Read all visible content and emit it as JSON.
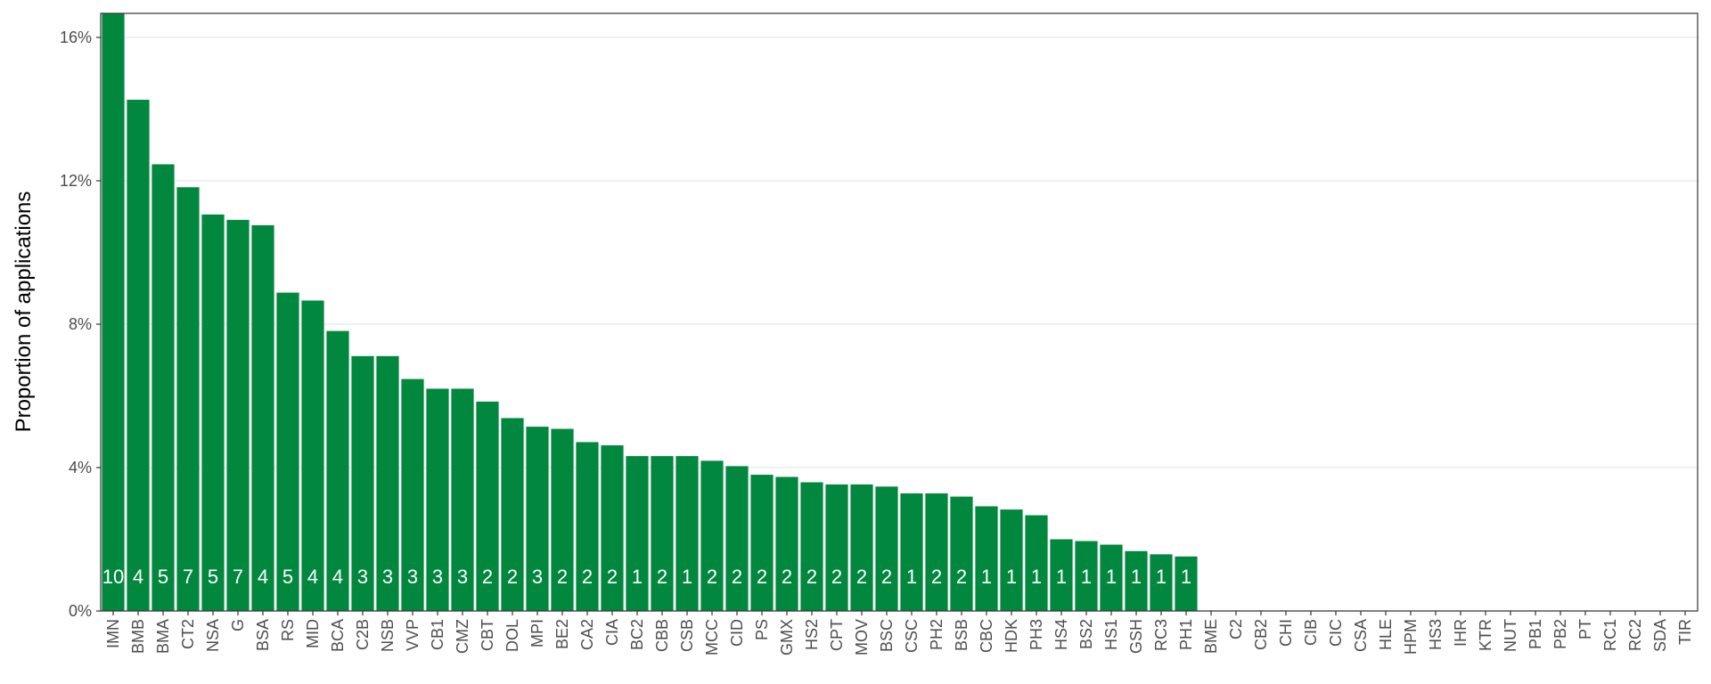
{
  "chart_data": {
    "type": "bar",
    "ylabel": "Proportion of applications",
    "categories": [
      "IMN",
      "BMB",
      "BMA",
      "CT2",
      "NSA",
      "G",
      "BSA",
      "RS",
      "MID",
      "BCA",
      "C2B",
      "NSB",
      "VVP",
      "CB1",
      "CMZ",
      "CBT",
      "DOL",
      "MPI",
      "BE2",
      "CA2",
      "CIA",
      "BC2",
      "CBB",
      "CSB",
      "MCC",
      "CID",
      "PS",
      "GMX",
      "HS2",
      "CPT",
      "MOV",
      "BSC",
      "CSC",
      "PH2",
      "BSB",
      "CBC",
      "HDK",
      "PH3",
      "HS4",
      "BS2",
      "HS1",
      "GSH",
      "RC3",
      "PH1",
      "BME",
      "C2",
      "CB2",
      "CHI",
      "CIB",
      "CIC",
      "CSA",
      "HLE",
      "HPM",
      "HS3",
      "IHR",
      "KTR",
      "NUT",
      "PB1",
      "PB2",
      "PT",
      "RC1",
      "RC2",
      "SDA",
      "TIR"
    ],
    "values": [
      16.67,
      14.26,
      12.46,
      11.82,
      11.06,
      10.91,
      10.76,
      8.88,
      8.66,
      7.81,
      7.11,
      7.11,
      6.47,
      6.2,
      6.2,
      5.84,
      5.38,
      5.14,
      5.08,
      4.71,
      4.62,
      4.32,
      4.32,
      4.32,
      4.19,
      4.04,
      3.8,
      3.74,
      3.59,
      3.53,
      3.53,
      3.47,
      3.28,
      3.28,
      3.19,
      2.92,
      2.83,
      2.67,
      2.0,
      1.95,
      1.85,
      1.67,
      1.58,
      1.52,
      0,
      0,
      0,
      0,
      0,
      0,
      0,
      0,
      0,
      0,
      0,
      0,
      0,
      0,
      0,
      0,
      0,
      0,
      0,
      0
    ],
    "bar_labels": [
      10,
      4,
      5,
      7,
      5,
      7,
      4,
      5,
      4,
      4,
      3,
      3,
      3,
      3,
      3,
      2,
      2,
      3,
      2,
      2,
      2,
      1,
      2,
      1,
      2,
      2,
      2,
      2,
      2,
      2,
      2,
      2,
      1,
      2,
      2,
      1,
      1,
      1,
      1,
      1,
      1,
      1,
      1,
      1,
      null,
      null,
      null,
      null,
      null,
      null,
      null,
      null,
      null,
      null,
      null,
      null,
      null,
      null,
      null,
      null,
      null,
      null,
      null,
      null
    ],
    "color": "#02873f",
    "ylim": [
      0,
      16.67
    ],
    "yticks": [
      {
        "value": 0,
        "label": "0%"
      },
      {
        "value": 4,
        "label": "4%"
      },
      {
        "value": 8,
        "label": "8%"
      },
      {
        "value": 12,
        "label": "12%"
      },
      {
        "value": 16,
        "label": "16%"
      }
    ],
    "grid": true
  }
}
